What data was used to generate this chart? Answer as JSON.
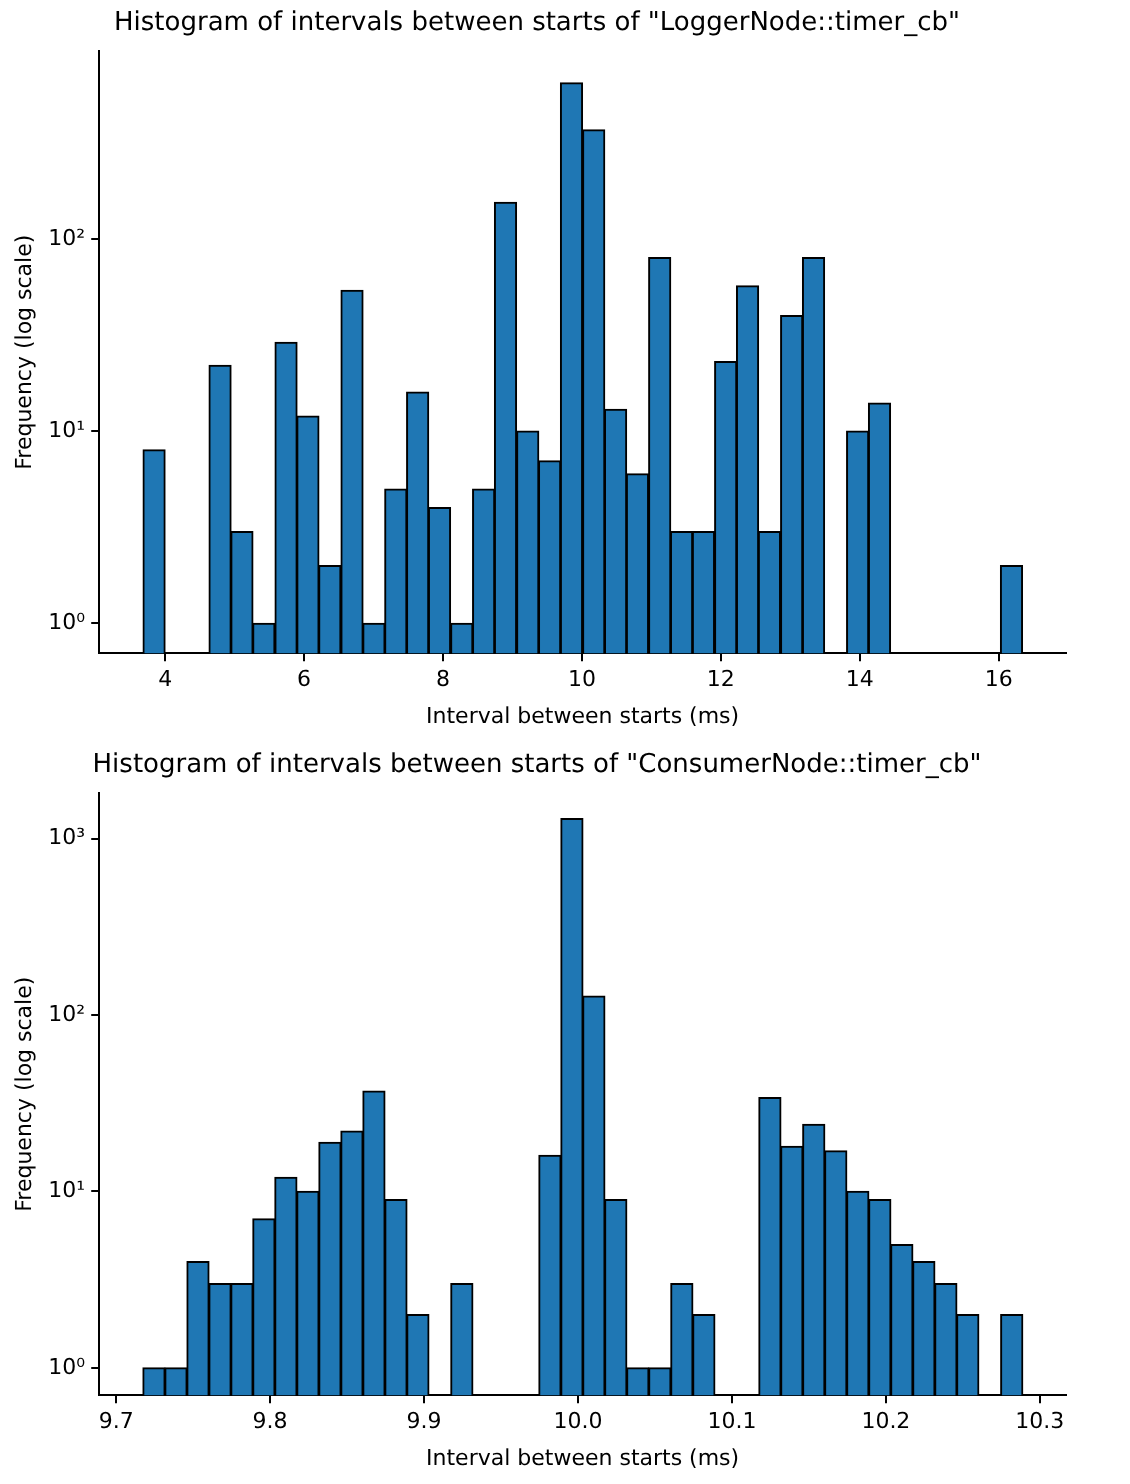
{
  "chart_data": [
    {
      "type": "histogram",
      "title": "Histogram of intervals between starts of \"LoggerNode::timer_cb\"",
      "xlabel": "Interval between starts (ms)",
      "ylabel": "Frequency (log scale)",
      "color": "#1f77b4",
      "bins": [
        3.68,
        4.0,
        4.63,
        4.95,
        5.26,
        5.58,
        5.9,
        6.21,
        6.53,
        6.85,
        7.16,
        7.48,
        7.79,
        8.11,
        8.43,
        8.74,
        9.06,
        9.38,
        9.69,
        10.01,
        10.33,
        10.64,
        10.96,
        11.28,
        11.59,
        11.91,
        12.23,
        12.54,
        12.86,
        13.18,
        13.49,
        13.81,
        14.13,
        14.44,
        16.03,
        16.34
      ],
      "values": [
        8,
        null,
        22,
        3,
        1,
        29,
        12,
        2,
        54,
        1,
        5,
        16,
        4,
        1,
        5,
        155,
        10,
        7,
        650,
        370,
        13,
        6,
        80,
        3,
        3,
        23,
        57,
        3,
        40,
        80,
        null,
        10,
        14,
        null,
        2
      ],
      "log": "y",
      "xlim": [
        3.05,
        16.97
      ],
      "xticks": [
        4,
        6,
        8,
        10,
        12,
        14,
        16
      ],
      "ylim": [
        0.72,
        950
      ],
      "yticks": [
        {
          "value": 1,
          "label": "10⁰"
        },
        {
          "value": 10,
          "label": "10¹"
        },
        {
          "value": 100,
          "label": "10²"
        }
      ],
      "grid": false,
      "legend": false
    },
    {
      "type": "histogram",
      "title": "Histogram of intervals between starts of \"ConsumerNode::timer_cb\"",
      "xlabel": "Interval between starts (ms)",
      "ylabel": "Frequency (log scale)",
      "color": "#1f77b4",
      "bins": [
        9.7174,
        9.7317,
        9.746,
        9.7603,
        9.7746,
        9.7888,
        9.8031,
        9.8174,
        9.8317,
        9.846,
        9.8603,
        9.8746,
        9.8889,
        9.9031,
        9.9174,
        9.9317,
        9.9746,
        9.9889,
        10.0032,
        10.0174,
        10.0317,
        10.046,
        10.0603,
        10.0746,
        10.0889,
        10.1175,
        10.1318,
        10.146,
        10.1603,
        10.1746,
        10.1889,
        10.2032,
        10.2175,
        10.2318,
        10.2461,
        10.2603,
        10.2746,
        10.2889
      ],
      "values": [
        1,
        1,
        4,
        3,
        3,
        7,
        12,
        10,
        19,
        22,
        37,
        9,
        2,
        null,
        3,
        null,
        16,
        1300,
        128,
        9,
        1,
        1,
        3,
        2,
        null,
        34,
        18,
        24,
        17,
        10,
        9,
        5,
        4,
        3,
        2,
        null,
        2
      ],
      "log": "y",
      "xlim": [
        9.689,
        10.317
      ],
      "xticks": [
        9.7,
        9.8,
        9.9,
        {
          "value": 10,
          "label": "10.0"
        },
        10.1,
        10.2,
        10.3
      ],
      "ylim": [
        0.7,
        1810
      ],
      "yticks": [
        {
          "value": 1,
          "label": "10⁰"
        },
        {
          "value": 10,
          "label": "10¹"
        },
        {
          "value": 100,
          "label": "10²"
        },
        {
          "value": 1000,
          "label": "10³"
        }
      ],
      "grid": false,
      "legend": false
    }
  ]
}
